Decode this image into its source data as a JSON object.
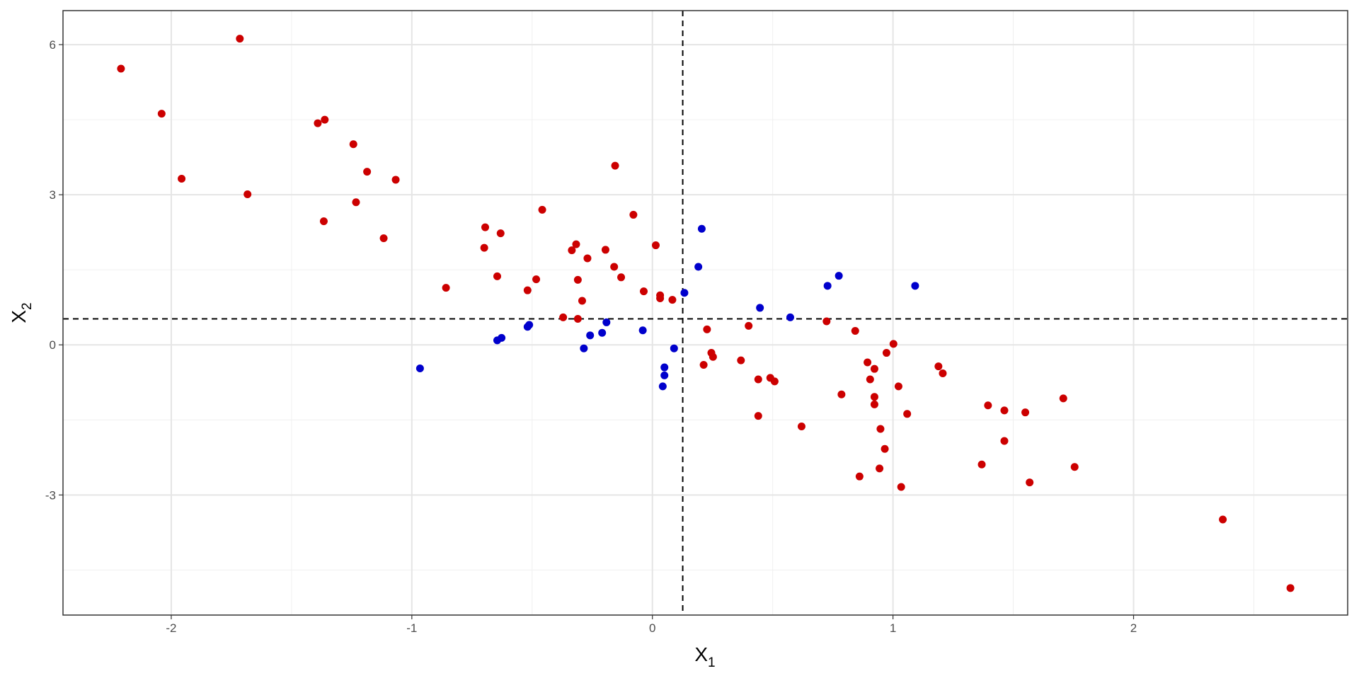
{
  "chart_data": {
    "type": "scatter",
    "x_label": "X",
    "x_label_sub": "1",
    "y_label": "X",
    "y_label_sub": "2",
    "xlim": [
      -2.45,
      2.89
    ],
    "ylim": [
      -5.4,
      6.68
    ],
    "xticks": [
      -2,
      -1,
      0,
      1,
      2
    ],
    "yticks": [
      -3,
      0,
      3,
      6
    ],
    "xminor": [
      -1.5,
      -0.5,
      0.5,
      1.5,
      2.5
    ],
    "yminor": [
      -4.5,
      -1.5,
      1.5,
      4.5
    ],
    "grid": true,
    "vline": 0.126,
    "hline": 0.52,
    "series": [
      {
        "color": "#cc0000",
        "x": [
          -2.209,
          -1.715,
          -2.04,
          -1.957,
          -1.683,
          -1.391,
          -1.362,
          -1.366,
          -1.243,
          -1.186,
          -1.232,
          -1.067,
          -1.117,
          -0.858,
          -0.695,
          -0.699,
          -0.631,
          -0.645,
          -0.519,
          -0.483,
          -0.458,
          -0.371,
          -0.335,
          -0.317,
          -0.31,
          -0.31,
          -0.292,
          -0.27,
          -0.195,
          -0.159,
          -0.155,
          -0.13,
          -0.079,
          -0.036,
          0.014,
          0.032,
          0.032,
          0.083,
          0.213,
          0.227,
          0.245,
          0.252,
          0.368,
          0.4,
          0.44,
          0.44,
          0.49,
          0.508,
          0.62,
          0.724,
          0.786,
          0.843,
          0.861,
          0.894,
          0.905,
          0.923,
          0.923,
          0.923,
          0.948,
          0.944,
          0.966,
          0.973,
          1.002,
          1.023,
          1.034,
          1.059,
          1.189,
          1.207,
          1.369,
          1.395,
          1.463,
          1.463,
          1.55,
          1.568,
          1.708,
          1.755,
          2.371,
          2.652
        ],
        "values": [
          5.52,
          6.12,
          4.62,
          3.32,
          3.01,
          4.43,
          4.5,
          2.47,
          4.01,
          3.46,
          2.85,
          3.3,
          2.13,
          1.14,
          2.35,
          1.94,
          2.23,
          1.37,
          1.09,
          1.31,
          2.7,
          0.55,
          1.89,
          2.01,
          1.3,
          0.52,
          0.88,
          1.73,
          1.9,
          1.56,
          3.58,
          1.35,
          2.6,
          1.07,
          1.99,
          0.99,
          0.93,
          0.9,
          -0.4,
          0.31,
          -0.16,
          -0.24,
          -0.31,
          0.38,
          -0.69,
          -1.42,
          -0.66,
          -0.73,
          -1.63,
          0.47,
          -0.99,
          0.28,
          -2.63,
          -0.35,
          -0.69,
          -0.48,
          -1.04,
          -1.19,
          -1.68,
          -2.47,
          -2.08,
          -0.16,
          0.02,
          -0.83,
          -2.84,
          -1.38,
          -0.43,
          -0.57,
          -2.39,
          -1.21,
          -1.31,
          -1.92,
          -1.35,
          -2.75,
          -1.07,
          -2.44,
          -3.49,
          -4.86
        ]
      },
      {
        "color": "#0000cc",
        "x": [
          -0.966,
          -0.645,
          -0.627,
          -0.519,
          -0.512,
          -0.285,
          -0.259,
          -0.209,
          -0.191,
          -0.04,
          0.043,
          0.05,
          0.05,
          0.09,
          0.133,
          0.191,
          0.205,
          0.447,
          0.573,
          0.728,
          0.775,
          1.092
        ],
        "values": [
          -0.47,
          0.09,
          0.14,
          0.36,
          0.4,
          -0.07,
          0.19,
          0.24,
          0.45,
          0.29,
          -0.83,
          -0.45,
          -0.61,
          -0.07,
          1.04,
          1.56,
          2.32,
          0.74,
          0.55,
          1.18,
          1.38,
          1.18
        ]
      }
    ]
  }
}
